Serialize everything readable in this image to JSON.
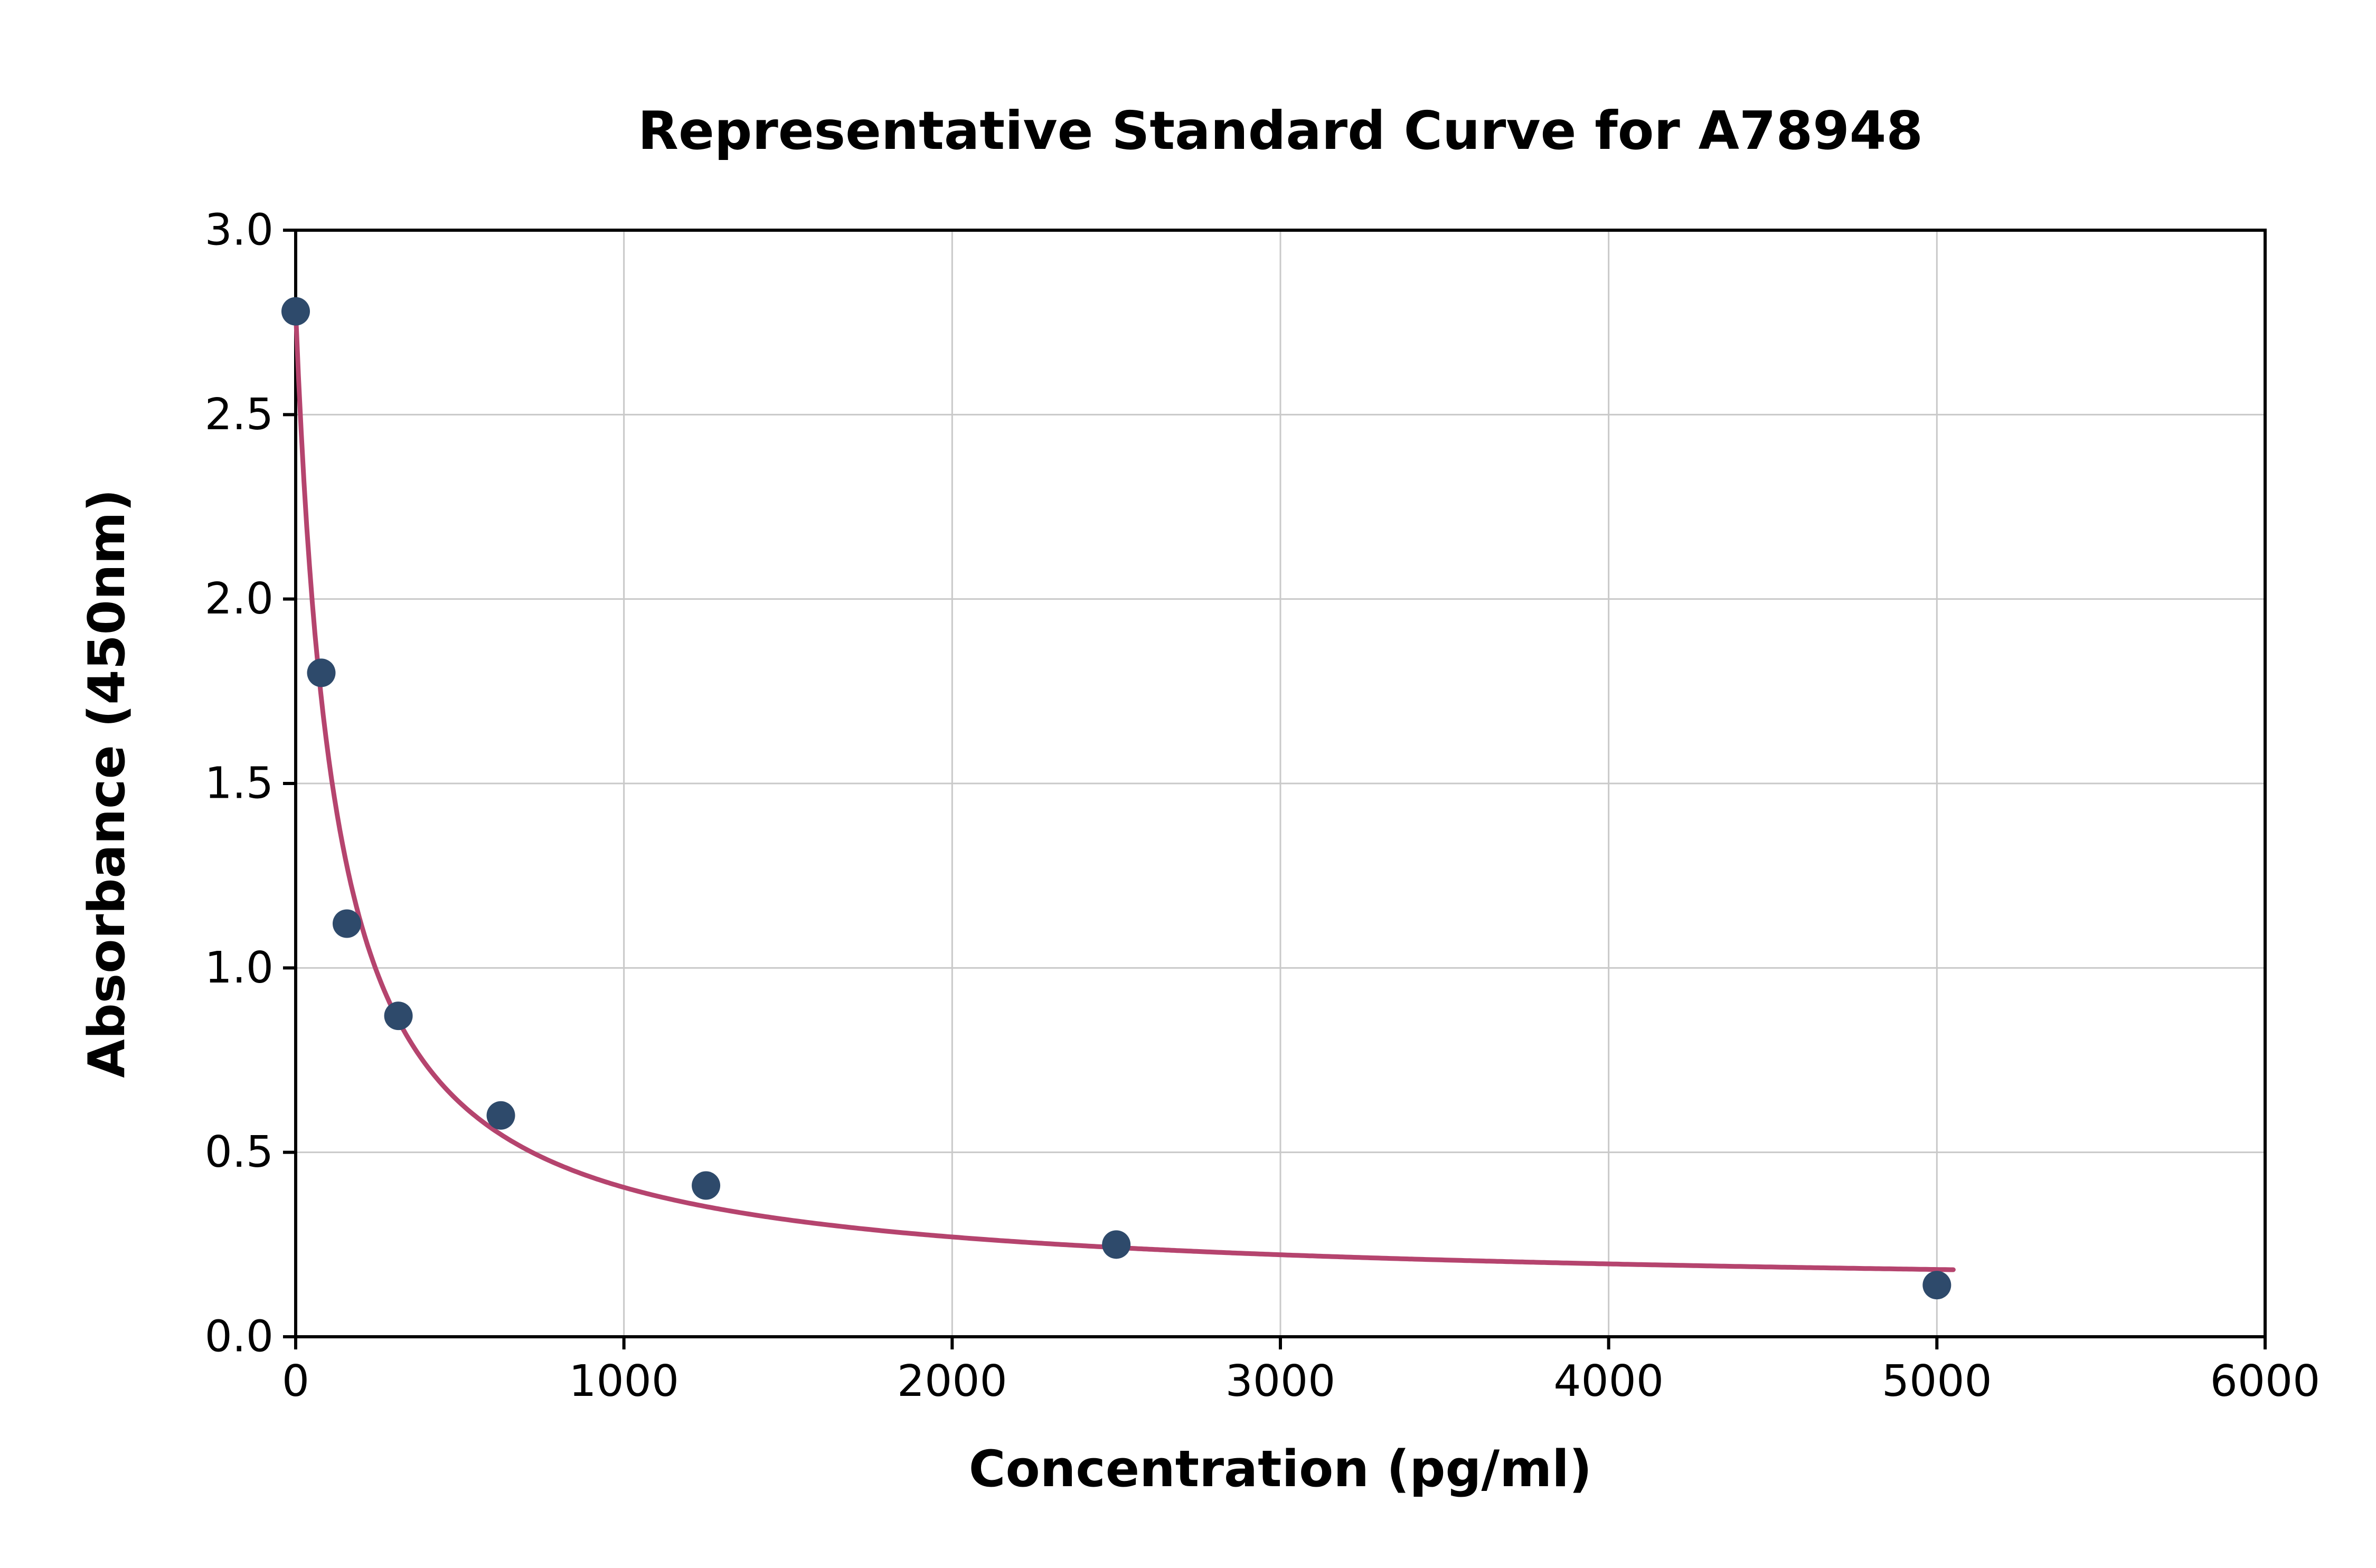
{
  "chart_data": {
    "type": "scatter",
    "title": "Representative Standard Curve for A78948",
    "xlabel": "Concentration (pg/ml)",
    "ylabel": "Absorbance (450nm)",
    "xlim": [
      0,
      6000
    ],
    "ylim": [
      0,
      3.0
    ],
    "grid": true,
    "legend": "none",
    "x_ticks": [
      0,
      1000,
      2000,
      3000,
      4000,
      5000,
      6000
    ],
    "x_tick_labels": [
      "0",
      "1000",
      "2000",
      "3000",
      "4000",
      "5000",
      "6000"
    ],
    "y_ticks": [
      0.0,
      0.5,
      1.0,
      1.5,
      2.0,
      2.5,
      3.0
    ],
    "y_tick_labels": [
      "0.0",
      "0.5",
      "1.0",
      "1.5",
      "2.0",
      "2.5",
      "3.0"
    ],
    "points": [
      [
        0,
        2.78
      ],
      [
        78,
        1.8
      ],
      [
        156,
        1.12
      ],
      [
        313,
        0.87
      ],
      [
        625,
        0.6
      ],
      [
        1250,
        0.41
      ],
      [
        2500,
        0.25
      ],
      [
        5000,
        0.14
      ]
    ],
    "fit_curve": {
      "model": "4PL",
      "a": 2.78,
      "b": 1.0,
      "c": 120,
      "d": 0.12,
      "x_start": 0,
      "x_end": 5050
    },
    "colors": {
      "point": "#2e4a6b",
      "curve": "#b5446e",
      "grid": "#c9c9c9",
      "axis": "#000000",
      "background": "#ffffff"
    }
  }
}
